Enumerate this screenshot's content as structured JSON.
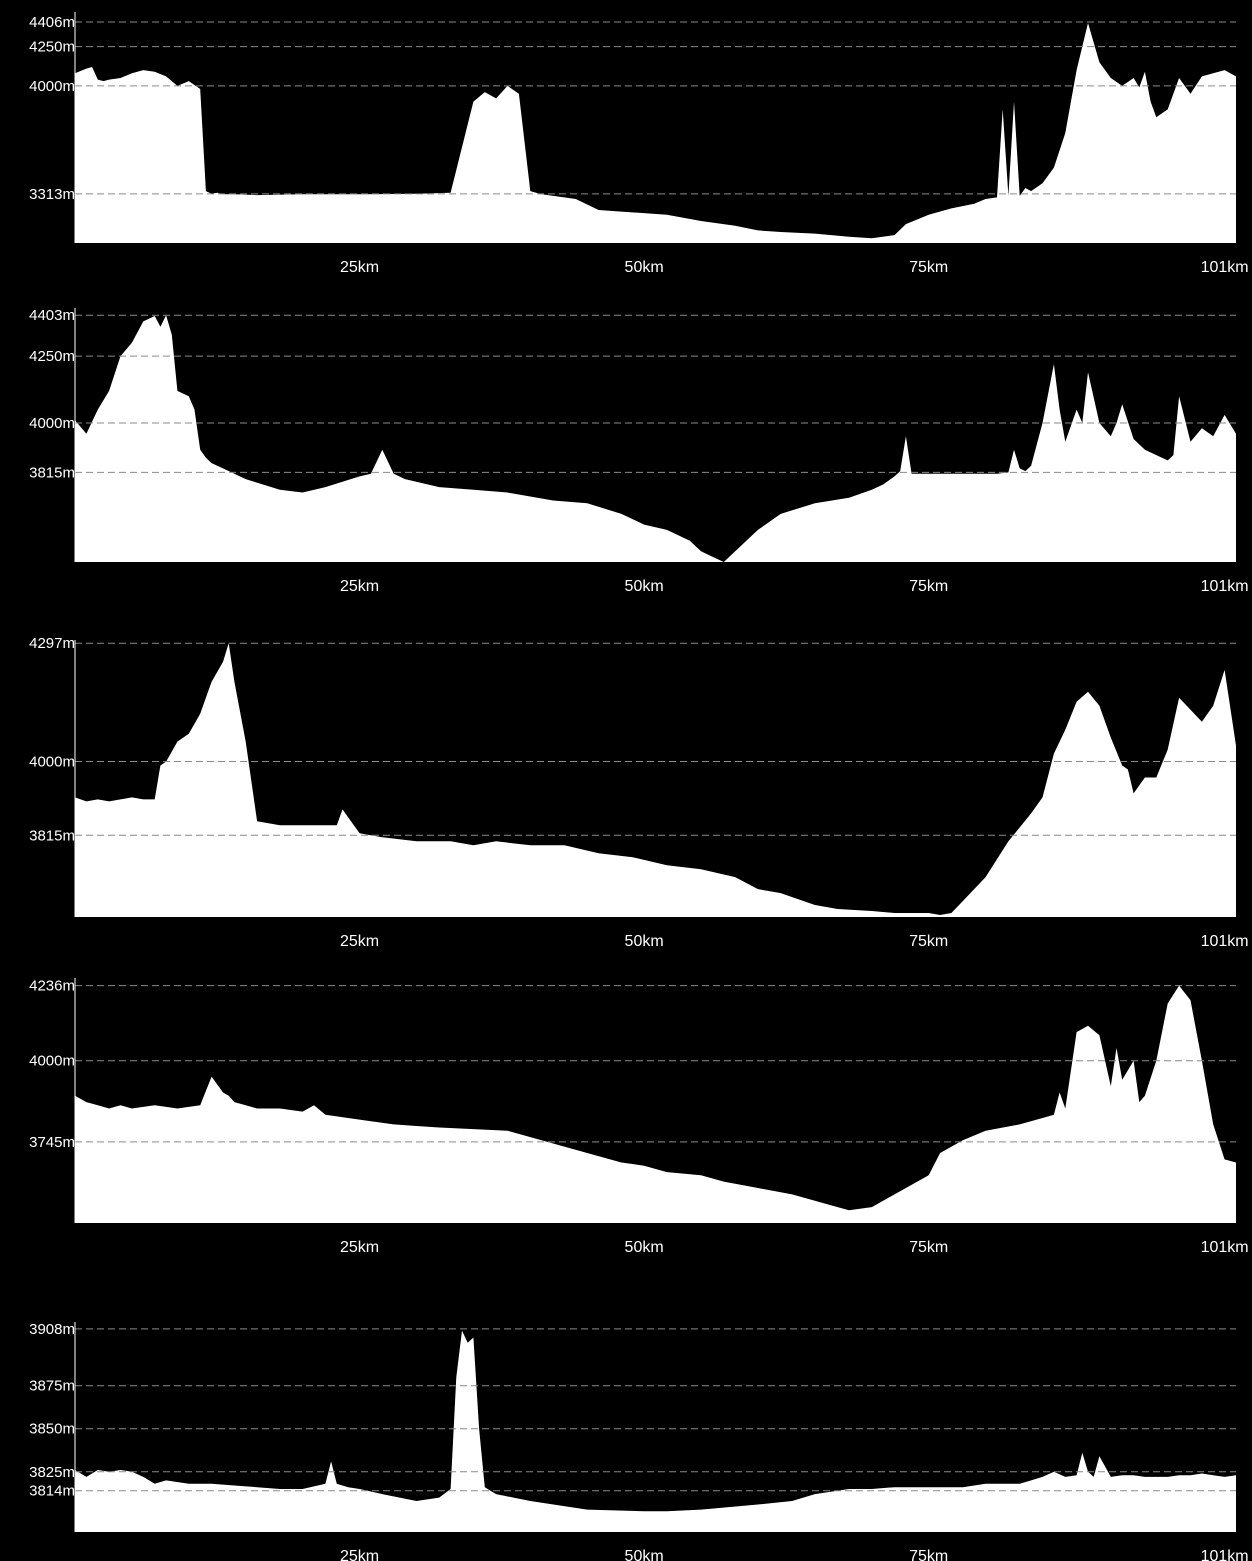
{
  "chart_data": [
    {
      "type": "area",
      "title": "",
      "x_ticks": [
        25,
        50,
        75,
        101
      ],
      "x_tick_labels": [
        "25km",
        "50km",
        "75km",
        "101km"
      ],
      "y_ticks": [
        4406,
        4250,
        4000,
        3313
      ],
      "y_tick_labels": [
        "4406m",
        "4250m",
        "4000m",
        "3313m"
      ],
      "xlim": [
        0,
        102
      ],
      "ylim": [
        3000,
        4470
      ],
      "grid": true,
      "x": [
        0,
        1,
        1.5,
        2,
        2.5,
        3,
        4,
        5,
        6,
        7,
        8,
        9,
        10,
        11,
        11.5,
        12,
        12.5,
        13,
        14,
        16,
        20,
        25,
        30,
        33,
        35,
        36,
        37,
        38,
        39,
        40,
        40.5,
        41,
        44,
        46,
        48,
        52,
        55,
        58,
        60,
        62,
        65,
        68,
        70,
        72,
        73,
        75,
        77,
        79,
        80,
        81,
        81.5,
        82,
        82.5,
        83,
        83.5,
        84,
        85,
        86,
        87,
        88,
        89,
        90,
        91,
        92,
        93,
        93.5,
        94,
        94.5,
        95,
        96,
        97,
        98,
        99,
        100,
        101,
        102
      ],
      "values": [
        4080,
        4110,
        4120,
        4040,
        4030,
        4040,
        4050,
        4080,
        4100,
        4090,
        4060,
        4000,
        4030,
        3980,
        3330,
        3313,
        3320,
        3310,
        3310,
        3305,
        3310,
        3310,
        3313,
        3320,
        3900,
        3960,
        3920,
        4000,
        3950,
        3330,
        3320,
        3310,
        3280,
        3210,
        3200,
        3180,
        3140,
        3110,
        3080,
        3070,
        3060,
        3040,
        3030,
        3050,
        3120,
        3180,
        3220,
        3250,
        3280,
        3290,
        3850,
        3300,
        3900,
        3300,
        3350,
        3330,
        3380,
        3480,
        3700,
        4100,
        4400,
        4150,
        4050,
        4000,
        4050,
        3990,
        4090,
        3900,
        3800,
        3850,
        4050,
        3950,
        4060,
        4080,
        4100,
        4060
      ]
    },
    {
      "type": "area",
      "title": "",
      "x_ticks": [
        25,
        50,
        75,
        101
      ],
      "x_tick_labels": [
        "25km",
        "50km",
        "75km",
        "101km"
      ],
      "y_ticks": [
        4403,
        4250,
        4000,
        3815
      ],
      "y_tick_labels": [
        "4403m",
        "4250m",
        "4000m",
        "3815m"
      ],
      "xlim": [
        0,
        102
      ],
      "ylim": [
        3480,
        4430
      ],
      "grid": true,
      "x": [
        0,
        1,
        2,
        3,
        4,
        5,
        6,
        7,
        7.5,
        8,
        8.5,
        9,
        10,
        10.5,
        11,
        11.5,
        12,
        13,
        15,
        18,
        20,
        22,
        25,
        26,
        27,
        28,
        29,
        32,
        35,
        38,
        42,
        45,
        48,
        50,
        52,
        54,
        55,
        56,
        57,
        58,
        60,
        62,
        65,
        68,
        70,
        71,
        72,
        72.5,
        73,
        73.5,
        74,
        78,
        81,
        82,
        82.5,
        83,
        83.5,
        84,
        85,
        86,
        86.5,
        87,
        88,
        88.5,
        89,
        90,
        91,
        91.5,
        92,
        93,
        94,
        95,
        96,
        96.5,
        97,
        98,
        99,
        100,
        101,
        102
      ],
      "values": [
        4010,
        3960,
        4050,
        4120,
        4250,
        4300,
        4380,
        4400,
        4360,
        4403,
        4330,
        4120,
        4100,
        4050,
        3900,
        3870,
        3850,
        3830,
        3790,
        3750,
        3740,
        3760,
        3800,
        3810,
        3900,
        3810,
        3790,
        3760,
        3750,
        3740,
        3710,
        3700,
        3660,
        3620,
        3600,
        3560,
        3520,
        3500,
        3480,
        3520,
        3600,
        3660,
        3700,
        3720,
        3750,
        3770,
        3800,
        3820,
        3950,
        3810,
        3810,
        3810,
        3810,
        3815,
        3900,
        3830,
        3820,
        3840,
        4000,
        4220,
        4050,
        3930,
        4050,
        4000,
        4190,
        4000,
        3950,
        4000,
        4070,
        3940,
        3900,
        3880,
        3860,
        3880,
        4100,
        3930,
        3980,
        3950,
        4030,
        3960
      ]
    },
    {
      "type": "area",
      "title": "",
      "x_ticks": [
        25,
        50,
        75,
        101
      ],
      "x_tick_labels": [
        "25km",
        "50km",
        "75km",
        "101km"
      ],
      "y_ticks": [
        4297,
        4000,
        3815
      ],
      "y_tick_labels": [
        "4297m",
        "4000m",
        "3815m"
      ],
      "xlim": [
        0,
        102
      ],
      "ylim": [
        3610,
        4305
      ],
      "grid": true,
      "x": [
        0,
        1,
        2,
        3,
        4,
        5,
        6,
        7,
        7.5,
        8,
        9,
        10,
        11,
        12,
        13,
        13.5,
        14,
        15,
        16,
        18,
        20,
        22,
        23,
        23.5,
        24,
        25,
        27,
        30,
        33,
        35,
        37,
        40,
        43,
        46,
        49,
        52,
        55,
        58,
        60,
        62,
        65,
        67,
        70,
        72,
        75,
        76,
        77,
        78,
        80,
        82,
        84,
        85,
        86,
        87,
        88,
        89,
        90,
        91,
        92,
        92.5,
        93,
        94,
        95,
        96,
        97,
        98,
        99,
        100,
        101,
        102
      ],
      "values": [
        3910,
        3900,
        3905,
        3900,
        3905,
        3910,
        3905,
        3905,
        3990,
        4000,
        4050,
        4070,
        4120,
        4200,
        4250,
        4297,
        4200,
        4050,
        3850,
        3840,
        3840,
        3840,
        3840,
        3880,
        3860,
        3820,
        3810,
        3800,
        3800,
        3790,
        3800,
        3790,
        3790,
        3770,
        3760,
        3740,
        3730,
        3710,
        3680,
        3670,
        3640,
        3630,
        3625,
        3620,
        3620,
        3615,
        3620,
        3650,
        3710,
        3800,
        3870,
        3910,
        4020,
        4080,
        4150,
        4175,
        4140,
        4060,
        3990,
        3980,
        3920,
        3960,
        3960,
        4030,
        4160,
        4130,
        4100,
        4140,
        4230,
        4040
      ]
    },
    {
      "type": "area",
      "title": "",
      "x_ticks": [
        25,
        50,
        75,
        101
      ],
      "x_tick_labels": [
        "25km",
        "50km",
        "75km",
        "101km"
      ],
      "y_ticks": [
        4236,
        4000,
        3745
      ],
      "y_tick_labels": [
        "4236m",
        "4000m",
        "3745m"
      ],
      "xlim": [
        0,
        102
      ],
      "ylim": [
        3490,
        4260
      ],
      "grid": true,
      "x": [
        0,
        1,
        2,
        3,
        4,
        5,
        6,
        7,
        8,
        9,
        10,
        11,
        12,
        13,
        13.5,
        14,
        15,
        16,
        18,
        20,
        21,
        22,
        24,
        26,
        28,
        30,
        32,
        35,
        38,
        40,
        42,
        45,
        48,
        50,
        52,
        55,
        57,
        60,
        63,
        65,
        67,
        68,
        70,
        72,
        75,
        76,
        78,
        80,
        83,
        85,
        86,
        86.5,
        87,
        88,
        89,
        90,
        91,
        91.5,
        92,
        93,
        93.5,
        94,
        95,
        96,
        97,
        98,
        99,
        100,
        101,
        102
      ],
      "values": [
        3890,
        3870,
        3860,
        3850,
        3860,
        3850,
        3855,
        3860,
        3855,
        3850,
        3855,
        3860,
        3950,
        3900,
        3890,
        3870,
        3860,
        3850,
        3850,
        3840,
        3860,
        3830,
        3820,
        3810,
        3800,
        3795,
        3790,
        3785,
        3780,
        3760,
        3740,
        3710,
        3680,
        3670,
        3650,
        3640,
        3620,
        3600,
        3580,
        3560,
        3540,
        3530,
        3540,
        3580,
        3640,
        3710,
        3750,
        3780,
        3800,
        3820,
        3830,
        3900,
        3850,
        4090,
        4110,
        4080,
        3920,
        4040,
        3940,
        4000,
        3870,
        3890,
        4000,
        4180,
        4236,
        4190,
        4000,
        3800,
        3690,
        3680
      ]
    },
    {
      "type": "area",
      "title": "",
      "x_ticks": [
        25,
        50,
        75,
        101
      ],
      "x_tick_labels": [
        "25km",
        "50km",
        "75km",
        "101km"
      ],
      "y_ticks": [
        3908,
        3875,
        3850,
        3825,
        3814
      ],
      "y_tick_labels": [
        "3908m",
        "3875m",
        "3850m",
        "3825m",
        "3814m"
      ],
      "xlim": [
        0,
        102
      ],
      "ylim": [
        3790,
        3912
      ],
      "grid": true,
      "x": [
        0,
        1,
        2,
        3,
        4,
        5,
        6,
        7,
        8,
        10,
        12,
        14,
        16,
        18,
        20,
        22,
        22.5,
        23,
        24,
        25,
        27,
        30,
        32,
        33,
        33.5,
        34,
        34.5,
        35,
        35.5,
        36,
        37,
        40,
        45,
        50,
        52,
        55,
        60,
        63,
        65,
        68,
        70,
        72,
        75,
        78,
        80,
        82,
        83,
        84,
        85,
        86,
        87,
        88,
        88.5,
        89,
        89.5,
        90,
        91,
        92,
        93,
        94,
        95,
        96,
        97,
        98,
        99,
        100,
        101,
        102
      ],
      "values": [
        3826,
        3822,
        3826,
        3825,
        3826,
        3825,
        3822,
        3818,
        3820,
        3818,
        3818,
        3817,
        3816,
        3815,
        3815,
        3818,
        3831,
        3818,
        3816,
        3815,
        3812,
        3808,
        3810,
        3815,
        3880,
        3907,
        3900,
        3903,
        3850,
        3816,
        3812,
        3808,
        3803,
        3802,
        3802,
        3803,
        3806,
        3808,
        3812,
        3815,
        3815,
        3816,
        3816,
        3816,
        3818,
        3818,
        3818,
        3820,
        3822,
        3825,
        3822,
        3823,
        3836,
        3825,
        3822,
        3834,
        3822,
        3823,
        3823,
        3822,
        3822,
        3822,
        3823,
        3823,
        3824,
        3823,
        3822,
        3823
      ]
    }
  ]
}
